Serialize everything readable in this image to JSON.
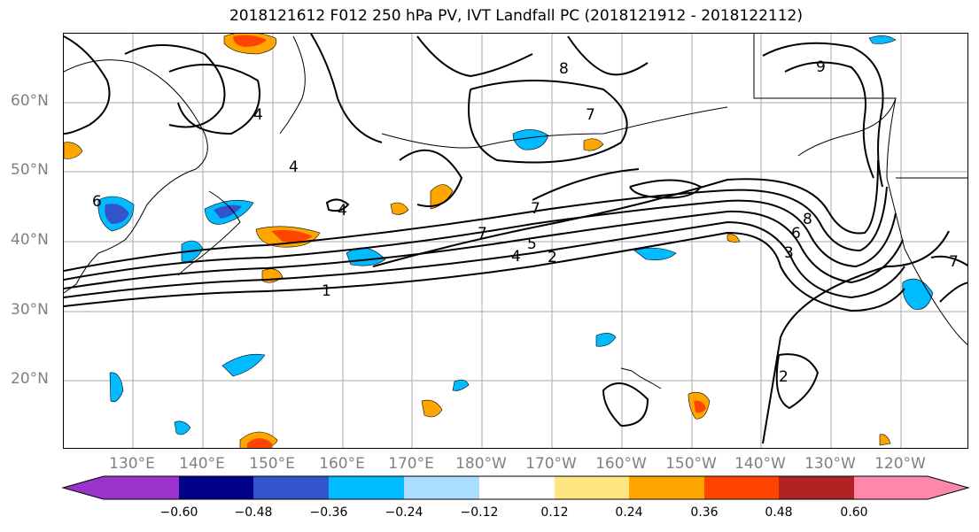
{
  "title": "2018121612 F012 250 hPa PV, IVT Landfall PC (2018121912 - 2018122112)",
  "map": {
    "lat_labels": [
      "60°N",
      "50°N",
      "40°N",
      "30°N",
      "20°N"
    ],
    "lon_labels": [
      "130°E",
      "140°E",
      "150°E",
      "160°E",
      "170°E",
      "180°W",
      "170°W",
      "160°W",
      "150°W",
      "140°W",
      "130°W",
      "120°W"
    ],
    "contour_labels": [
      "1",
      "2",
      "3",
      "4",
      "5",
      "6",
      "7",
      "8",
      "9"
    ]
  },
  "colorbar": {
    "ticks": [
      "−0.60",
      "−0.48",
      "−0.36",
      "−0.24",
      "−0.12",
      "0.12",
      "0.24",
      "0.36",
      "0.48",
      "0.60"
    ],
    "colors": [
      "#9933cc",
      "#000088",
      "#3355cc",
      "#00bbff",
      "#aaddff",
      "#ffffff",
      "#ffe680",
      "#ffa500",
      "#ff4400",
      "#b22222",
      "#ff88aa"
    ]
  },
  "colors": {
    "contour": "#000000",
    "grid": "#aaaaaa",
    "coast": "#000000"
  }
}
